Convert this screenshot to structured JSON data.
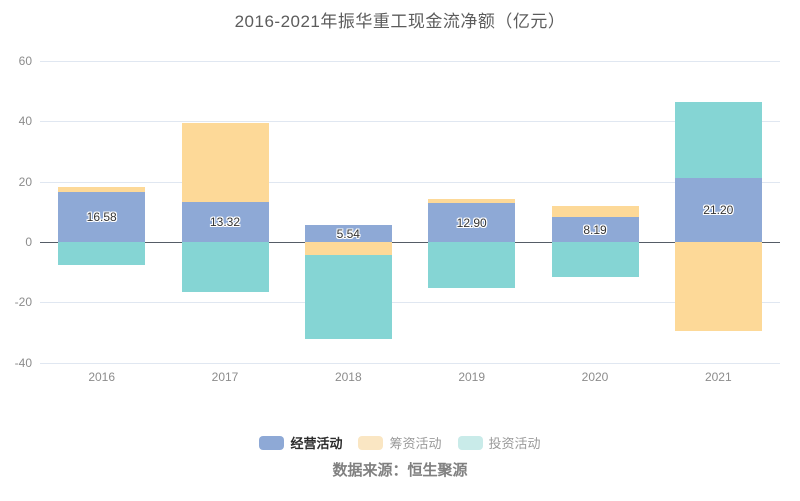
{
  "title": "2016-2021年振华重工现金流净额（亿元）",
  "source": "数据来源：恒生聚源",
  "chart_data": {
    "type": "bar",
    "stacked": true,
    "title": "2016-2021年振华重工现金流净额（亿元）",
    "categories": [
      "2016",
      "2017",
      "2018",
      "2019",
      "2020",
      "2021"
    ],
    "series": [
      {
        "name": "经营活动",
        "color": "#8EA9D6",
        "values": [
          16.58,
          13.32,
          5.54,
          12.9,
          8.19,
          21.2
        ],
        "labels_visible": true
      },
      {
        "name": "筹资活动",
        "color": "#FDD998",
        "values": [
          1.5,
          26.0,
          -4.2,
          1.4,
          3.8,
          -29.5
        ],
        "labels_visible": false
      },
      {
        "name": "投资活动",
        "color": "#85D5D4",
        "values": [
          -7.5,
          -16.4,
          -28.0,
          -15.2,
          -11.7,
          25.0
        ],
        "labels_visible": false
      }
    ],
    "data_labels": [
      "16.58",
      "13.32",
      "5.54",
      "12.90",
      "8.19",
      "21.20"
    ],
    "xlabel": "",
    "ylabel": "",
    "ylim": [
      -40,
      60
    ],
    "y_ticks": [
      60,
      40,
      20,
      0,
      -20,
      -40
    ],
    "grid": true,
    "legend_position": "bottom"
  },
  "legend": {
    "items": [
      {
        "label": "经营活动",
        "swatch_color": "#8EA9D6",
        "emphasis": true
      },
      {
        "label": "筹资活动",
        "swatch_color": "#FAE6C3",
        "emphasis": false
      },
      {
        "label": "投资活动",
        "swatch_color": "#C9EBE9",
        "emphasis": false
      }
    ]
  },
  "colors": {
    "operating": "#8EA9D6",
    "financing": "#FDD998",
    "investing": "#85D5D4",
    "zero_axis": "#555c66",
    "gridline": "#e0e7f1"
  }
}
